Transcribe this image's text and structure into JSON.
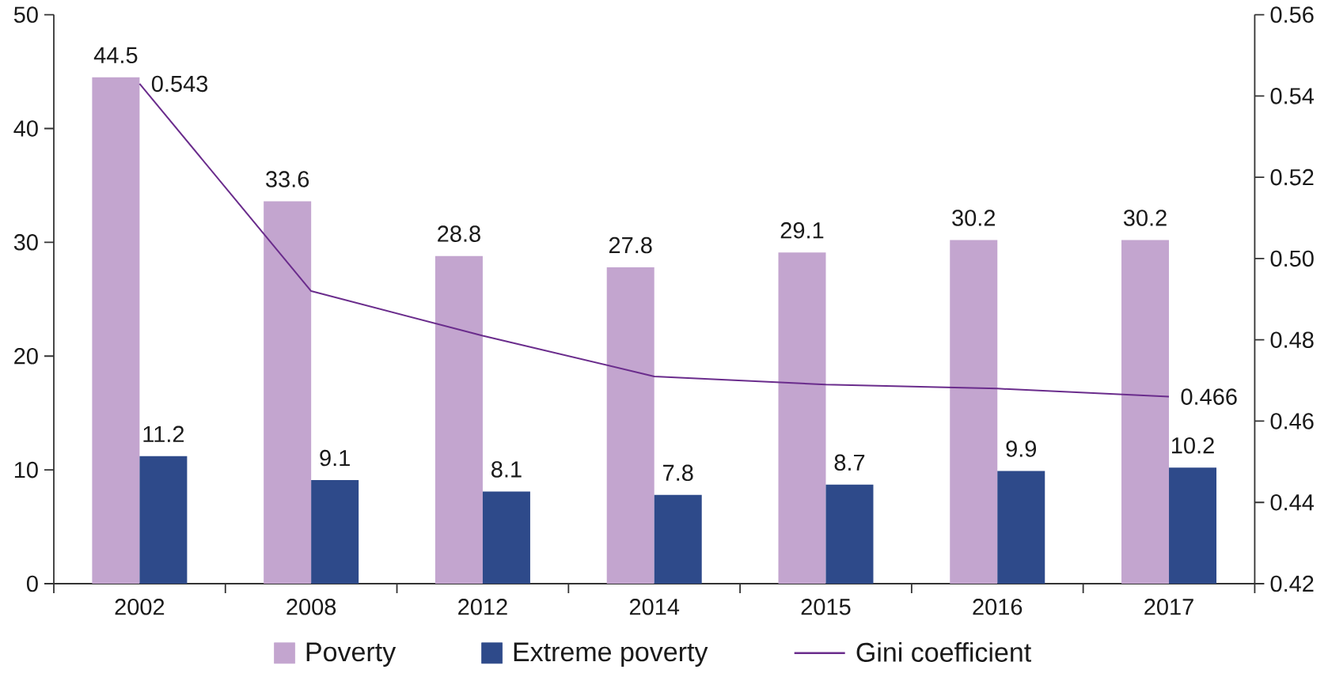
{
  "chart_data": {
    "type": "bar",
    "categories": [
      "2002",
      "2008",
      "2012",
      "2014",
      "2015",
      "2016",
      "2017"
    ],
    "series": [
      {
        "name": "Poverty",
        "color": "#c3a5cf",
        "values": [
          44.5,
          33.6,
          28.8,
          27.8,
          29.1,
          30.2,
          30.2
        ],
        "value_labels": [
          "44.5",
          "33.6",
          "28.8",
          "27.8",
          "29.1",
          "30.2",
          "30.2"
        ]
      },
      {
        "name": "Extreme poverty",
        "color": "#2e4a8a",
        "values": [
          11.2,
          9.1,
          8.1,
          7.8,
          8.7,
          9.9,
          10.2
        ],
        "value_labels": [
          "11.2",
          "9.1",
          "8.1",
          "7.8",
          "8.7",
          "9.9",
          "10.2"
        ]
      },
      {
        "name": "Gini coefficient",
        "type": "line",
        "axis": "y2",
        "marker": "none",
        "color": "#6a2c8c",
        "values": [
          0.543,
          0.492,
          0.481,
          0.471,
          0.469,
          0.468,
          0.466
        ],
        "value_labels": [
          "0.543",
          null,
          null,
          null,
          null,
          null,
          "0.466"
        ]
      }
    ],
    "ylim": [
      0,
      50
    ],
    "yticks": [
      0,
      10,
      20,
      30,
      40,
      50
    ],
    "y2lim": [
      0.42,
      0.56
    ],
    "y2ticks": [
      0.42,
      0.44,
      0.46,
      0.48,
      {
        "value": 0.5,
        "label": "0.50"
      },
      0.52,
      0.54,
      0.56
    ],
    "legend": "bottom",
    "grid": false
  }
}
